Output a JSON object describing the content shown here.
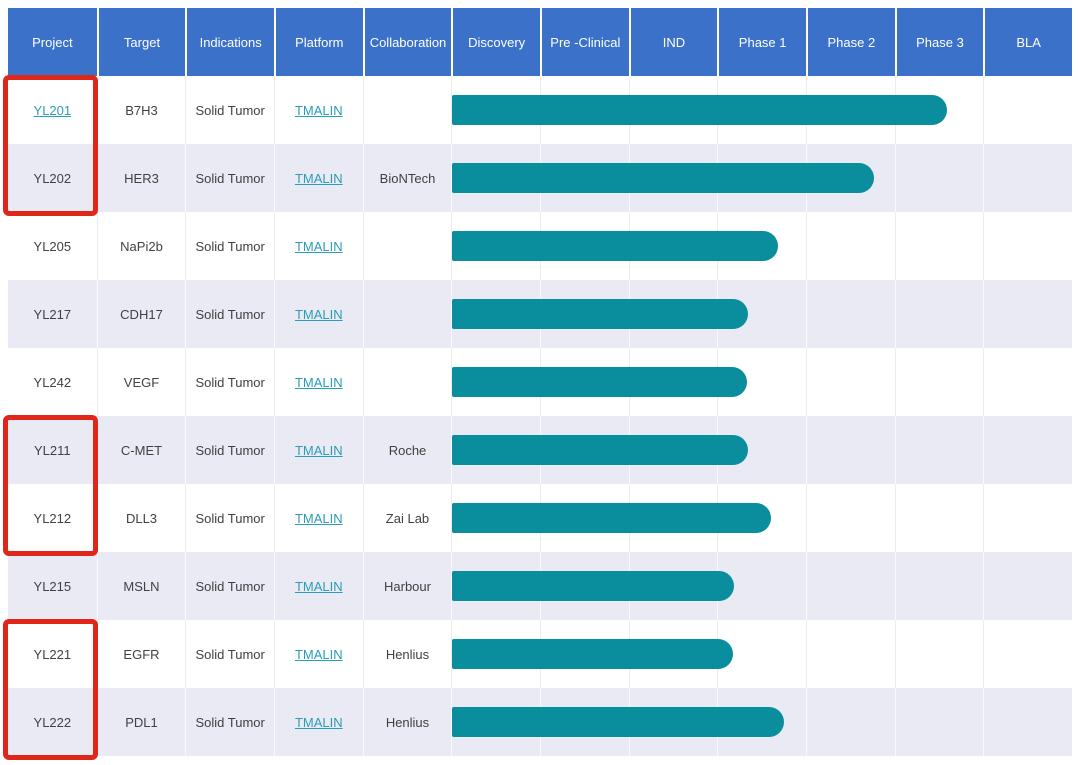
{
  "table": {
    "columns": [
      "Project",
      "Target",
      "Indications",
      "Platform",
      "Collaboration",
      "Discovery",
      "Pre -Clinical",
      "IND",
      "Phase 1",
      "Phase 2",
      "Phase 3",
      "BLA"
    ],
    "rows": [
      {
        "project": "YL201",
        "project_is_link": true,
        "target": "B7H3",
        "indications": "Solid Tumor",
        "platform": "TMALIN",
        "collaboration": "",
        "stage_reached": "Phase 3",
        "bar_extent_pct": 79.7
      },
      {
        "project": "YL202",
        "project_is_link": false,
        "target": "HER3",
        "indications": "Solid Tumor",
        "platform": "TMALIN",
        "collaboration": "BioNTech",
        "stage_reached": "Phase 2",
        "bar_extent_pct": 67.9
      },
      {
        "project": "YL205",
        "project_is_link": false,
        "target": "NaPi2b",
        "indications": "Solid Tumor",
        "platform": "TMALIN",
        "collaboration": "",
        "stage_reached": "Phase 1",
        "bar_extent_pct": 52.5
      },
      {
        "project": "YL217",
        "project_is_link": false,
        "target": "CDH17",
        "indications": "Solid Tumor",
        "platform": "TMALIN",
        "collaboration": "",
        "stage_reached": "Phase 1",
        "bar_extent_pct": 47.6
      },
      {
        "project": "YL242",
        "project_is_link": false,
        "target": "VEGF",
        "indications": "Solid Tumor",
        "platform": "TMALIN",
        "collaboration": "",
        "stage_reached": "Phase 1",
        "bar_extent_pct": 47.4
      },
      {
        "project": "YL211",
        "project_is_link": false,
        "target": "C-MET",
        "indications": "Solid Tumor",
        "platform": "TMALIN",
        "collaboration": "Roche",
        "stage_reached": "Phase 1",
        "bar_extent_pct": 47.6
      },
      {
        "project": "YL212",
        "project_is_link": false,
        "target": "DLL3",
        "indications": "Solid Tumor",
        "platform": "TMALIN",
        "collaboration": "Zai Lab",
        "stage_reached": "Phase 1",
        "bar_extent_pct": 51.3
      },
      {
        "project": "YL215",
        "project_is_link": false,
        "target": "MSLN",
        "indications": "Solid Tumor",
        "platform": "TMALIN",
        "collaboration": "Harbour",
        "stage_reached": "Phase 1",
        "bar_extent_pct": 45.4
      },
      {
        "project": "YL221",
        "project_is_link": false,
        "target": "EGFR",
        "indications": "Solid Tumor",
        "platform": "TMALIN",
        "collaboration": "Henlius",
        "stage_reached": "Phase 1",
        "bar_extent_pct": 45.3
      },
      {
        "project": "YL222",
        "project_is_link": false,
        "target": "PDL1",
        "indications": "Solid Tumor",
        "platform": "TMALIN",
        "collaboration": "Henlius",
        "stage_reached": "Phase 1",
        "bar_extent_pct": 53.4
      }
    ],
    "highlights": [
      {
        "start_row": 0,
        "row_count": 2,
        "projects": [
          "YL201",
          "YL202"
        ]
      },
      {
        "start_row": 5,
        "row_count": 2,
        "projects": [
          "YL211",
          "YL212"
        ]
      },
      {
        "start_row": 8,
        "row_count": 2,
        "projects": [
          "YL221",
          "YL222"
        ]
      }
    ]
  },
  "chart_data": {
    "type": "bar",
    "orientation": "horizontal",
    "categories": [
      "YL201",
      "YL202",
      "YL205",
      "YL217",
      "YL242",
      "YL211",
      "YL212",
      "YL215",
      "YL221",
      "YL222"
    ],
    "stage_axis": [
      "Discovery",
      "Pre -Clinical",
      "IND",
      "Phase 1",
      "Phase 2",
      "Phase 3",
      "BLA"
    ],
    "values_stage_units": [
      5.58,
      4.76,
      3.67,
      3.33,
      3.32,
      3.33,
      3.59,
      3.18,
      3.17,
      3.74
    ],
    "stage_reached": [
      "Phase 3",
      "Phase 2",
      "Phase 1",
      "Phase 1",
      "Phase 1",
      "Phase 1",
      "Phase 1",
      "Phase 1",
      "Phase 1",
      "Phase 1"
    ],
    "xlim": [
      0,
      7
    ],
    "grid": true,
    "legend": false
  },
  "colors": {
    "header_bg": "#3B71C8",
    "header_text": "#FFFFFF",
    "bar": "#0A8E9E",
    "link": "#2B9DB4",
    "stripe_row": "#E9EAF4",
    "white_row": "#FFFFFF",
    "body_text": "#414141",
    "grid_line": "#ECECF2",
    "highlight_border": "#E02519"
  }
}
